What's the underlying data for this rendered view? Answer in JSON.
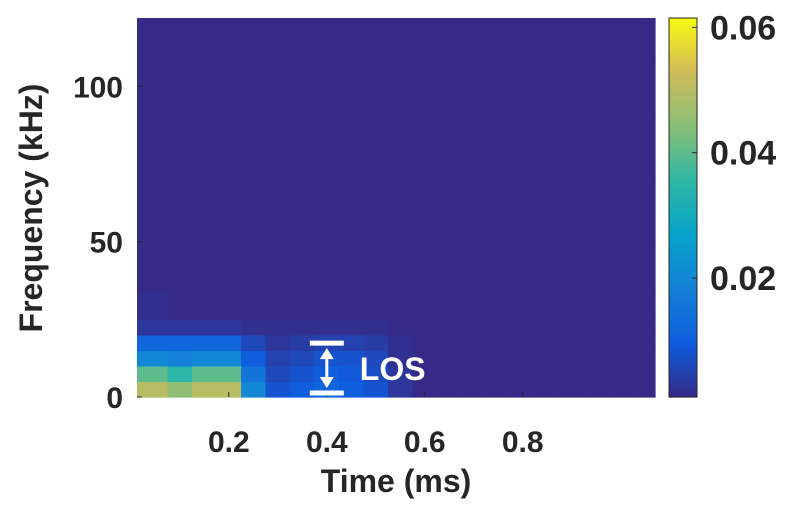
{
  "chart_data": {
    "type": "heatmap",
    "x_label": "Time (ms)",
    "y_label": "Frequency (kHz)",
    "x": [
      0.05,
      0.1,
      0.15,
      0.2,
      0.25,
      0.3,
      0.35,
      0.4,
      0.45,
      0.5,
      0.55,
      0.6,
      0.65,
      0.7,
      0.75,
      0.8,
      0.85,
      0.9,
      0.95,
      1.0,
      1.05
    ],
    "y": [
      2.5,
      7.5,
      12.5,
      17.5,
      22.5,
      27.5,
      40,
      60,
      80,
      100,
      115
    ],
    "z": [
      [
        0.05,
        0.045,
        0.05,
        0.05,
        0.02,
        0.008,
        0.01,
        0.012,
        0.01,
        0.008,
        0.003,
        0.001,
        0.001,
        0.001,
        0.001,
        0.001,
        0.001,
        0.001,
        0.001,
        0.001,
        0.001
      ],
      [
        0.04,
        0.035,
        0.04,
        0.04,
        0.015,
        0.006,
        0.008,
        0.01,
        0.009,
        0.007,
        0.003,
        0.001,
        0.001,
        0.001,
        0.001,
        0.001,
        0.001,
        0.001,
        0.001,
        0.001,
        0.001
      ],
      [
        0.02,
        0.018,
        0.02,
        0.02,
        0.01,
        0.005,
        0.006,
        0.008,
        0.008,
        0.006,
        0.002,
        0.001,
        0.001,
        0.001,
        0.001,
        0.001,
        0.001,
        0.001,
        0.001,
        0.001,
        0.001
      ],
      [
        0.012,
        0.012,
        0.012,
        0.012,
        0.006,
        0.003,
        0.004,
        0.005,
        0.005,
        0.004,
        0.002,
        0.001,
        0.001,
        0.001,
        0.001,
        0.001,
        0.001,
        0.001,
        0.001,
        0.001,
        0.001
      ],
      [
        0.003,
        0.003,
        0.003,
        0.003,
        0.002,
        0.002,
        0.002,
        0.002,
        0.002,
        0.002,
        0.001,
        0.001,
        0.001,
        0.001,
        0.001,
        0.001,
        0.001,
        0.001,
        0.001,
        0.001,
        0.001
      ],
      [
        0.002,
        0.001,
        0.001,
        0.001,
        0.001,
        0.001,
        0.001,
        0.001,
        0.001,
        0.001,
        0.001,
        0.001,
        0.001,
        0.001,
        0.001,
        0.001,
        0.001,
        0.001,
        0.001,
        0.001,
        0.001
      ],
      [
        0.001,
        0.001,
        0.001,
        0.001,
        0.001,
        0.001,
        0.001,
        0.001,
        0.001,
        0.001,
        0.001,
        0.001,
        0.001,
        0.001,
        0.001,
        0.001,
        0.001,
        0.001,
        0.001,
        0.001,
        0.001
      ],
      [
        0.001,
        0.001,
        0.001,
        0.001,
        0.001,
        0.001,
        0.001,
        0.001,
        0.001,
        0.001,
        0.001,
        0.001,
        0.001,
        0.001,
        0.001,
        0.001,
        0.001,
        0.001,
        0.001,
        0.001,
        0.001
      ],
      [
        0.001,
        0.001,
        0.001,
        0.001,
        0.001,
        0.001,
        0.001,
        0.001,
        0.001,
        0.001,
        0.001,
        0.001,
        0.001,
        0.001,
        0.001,
        0.001,
        0.001,
        0.001,
        0.001,
        0.001,
        0.001
      ],
      [
        0.001,
        0.001,
        0.001,
        0.001,
        0.001,
        0.001,
        0.001,
        0.001,
        0.001,
        0.001,
        0.001,
        0.001,
        0.001,
        0.001,
        0.001,
        0.001,
        0.001,
        0.001,
        0.001,
        0.001,
        0.001
      ],
      [
        0.001,
        0.001,
        0.001,
        0.001,
        0.001,
        0.001,
        0.001,
        0.001,
        0.001,
        0.001,
        0.001,
        0.001,
        0.001,
        0.001,
        0.001,
        0.001,
        0.001,
        0.001,
        0.001,
        0.001,
        0.001
      ]
    ],
    "xlim": [
      0.0125,
      1.07
    ],
    "ylim": [
      0,
      122
    ],
    "xticks": [
      0.2,
      0.4,
      0.6,
      0.8
    ],
    "yticks": [
      0,
      50,
      100
    ],
    "colormap": "parula",
    "clim": [
      0.001,
      0.0615
    ],
    "cticks": [
      0.02,
      0.04,
      0.06
    ],
    "annotation": {
      "text": "LOS",
      "ylim": [
        0,
        18
      ],
      "x": 0.4
    }
  }
}
